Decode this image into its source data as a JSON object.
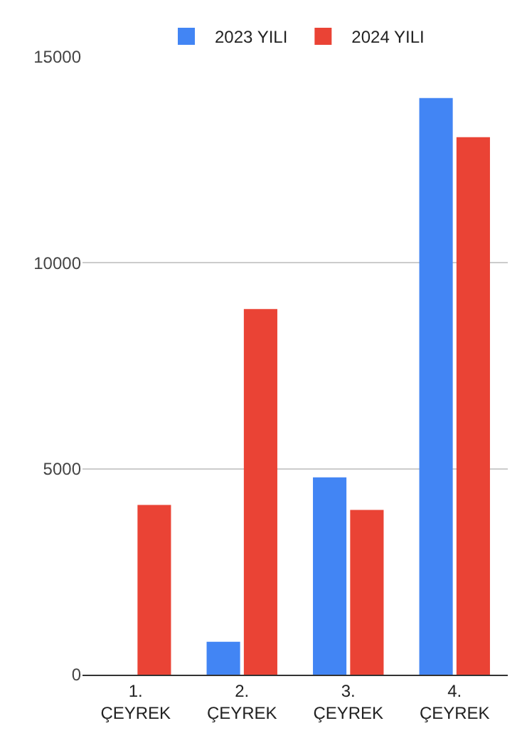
{
  "chart_data": {
    "type": "bar",
    "categories": [
      "1. ÇEYREK",
      "2. ÇEYREK",
      "3. ÇEYREK",
      "4. ÇEYREK"
    ],
    "series": [
      {
        "name": "2023 YILI",
        "color": "#4285f4",
        "values": [
          0,
          800,
          4790,
          14000
        ]
      },
      {
        "name": "2024 YILI",
        "color": "#ea4335",
        "values": [
          4120,
          8880,
          4000,
          13050
        ]
      }
    ],
    "ylim": [
      0,
      15000
    ],
    "yticks": [
      0,
      5000,
      10000,
      15000
    ],
    "grid": "y",
    "legend": "top"
  }
}
